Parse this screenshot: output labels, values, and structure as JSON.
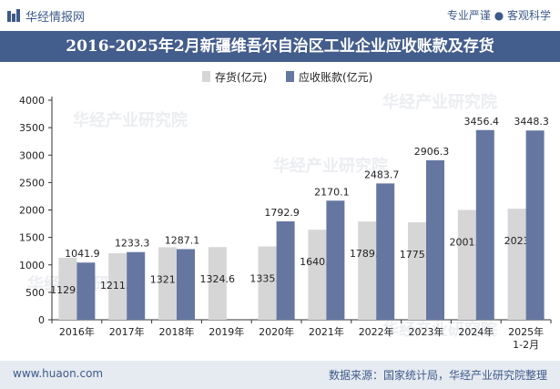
{
  "header": {
    "brand": "华经情报网",
    "slogan": "专业严谨 ● 客观科学",
    "title": "2016-2025年2月新疆维吾尔自治区工业企业应收账款及存货"
  },
  "footer": {
    "site": "www.huaon.com",
    "source": "数据来源：国家统计局，华经产业研究院整理"
  },
  "watermark": "华经产业研究院",
  "colors": {
    "title_bg": "#435d8c",
    "inventory": "#d6d6d6",
    "receivable": "#6577a1",
    "footer_bg": "#e6eaf1"
  },
  "chart_data": {
    "type": "bar",
    "categories": [
      "2016年",
      "2017年",
      "2018年",
      "2019年",
      "2020年",
      "2021年",
      "2022年",
      "2023年",
      "2024年",
      "2025年 1-2月"
    ],
    "series": [
      {
        "name": "存货(亿元)",
        "values": [
          1129.5,
          1211.8,
          1321.1,
          1324.6,
          1335.1,
          1640.9,
          1789.9,
          1775.1,
          2001.2,
          2023
        ]
      },
      {
        "name": "应收账款(亿元)",
        "values": [
          1041.9,
          1233.3,
          1287.1,
          null,
          1792.9,
          2170.1,
          2483.7,
          2906.3,
          3456.4,
          3448.3
        ]
      }
    ],
    "ylim": [
      0,
      4000
    ],
    "yticks": [
      0,
      500,
      1000,
      1500,
      2000,
      2500,
      3000,
      3500,
      4000
    ],
    "legend_position": "top"
  }
}
